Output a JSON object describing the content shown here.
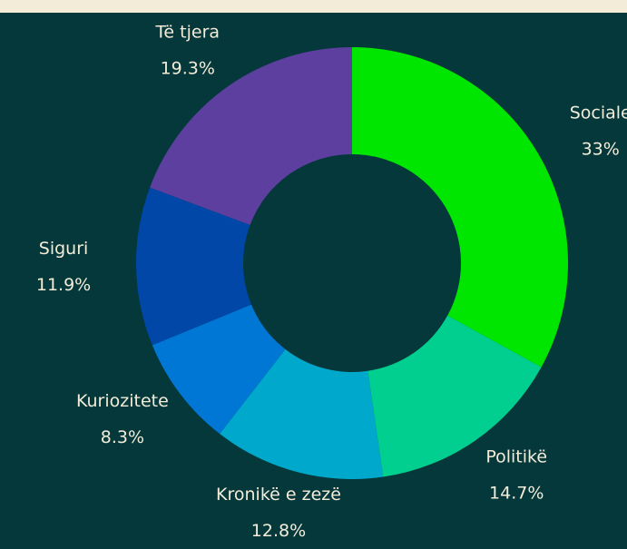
{
  "chart_data": {
    "type": "donut",
    "categories": [
      "Sociale",
      "Politikë",
      "Kronikë e zezë",
      "Kuriozitete",
      "Siguri",
      "Të tjera"
    ],
    "values": [
      33,
      14.7,
      12.8,
      8.3,
      11.9,
      19.3
    ],
    "value_labels": [
      "33%",
      "14.7%",
      "12.8%",
      "8.3%",
      "11.9%",
      "19.3%"
    ],
    "colors": [
      "#00e600",
      "#00cf8f",
      "#00a8cc",
      "#0077d4",
      "#0047a8",
      "#5c3f9e"
    ]
  }
}
